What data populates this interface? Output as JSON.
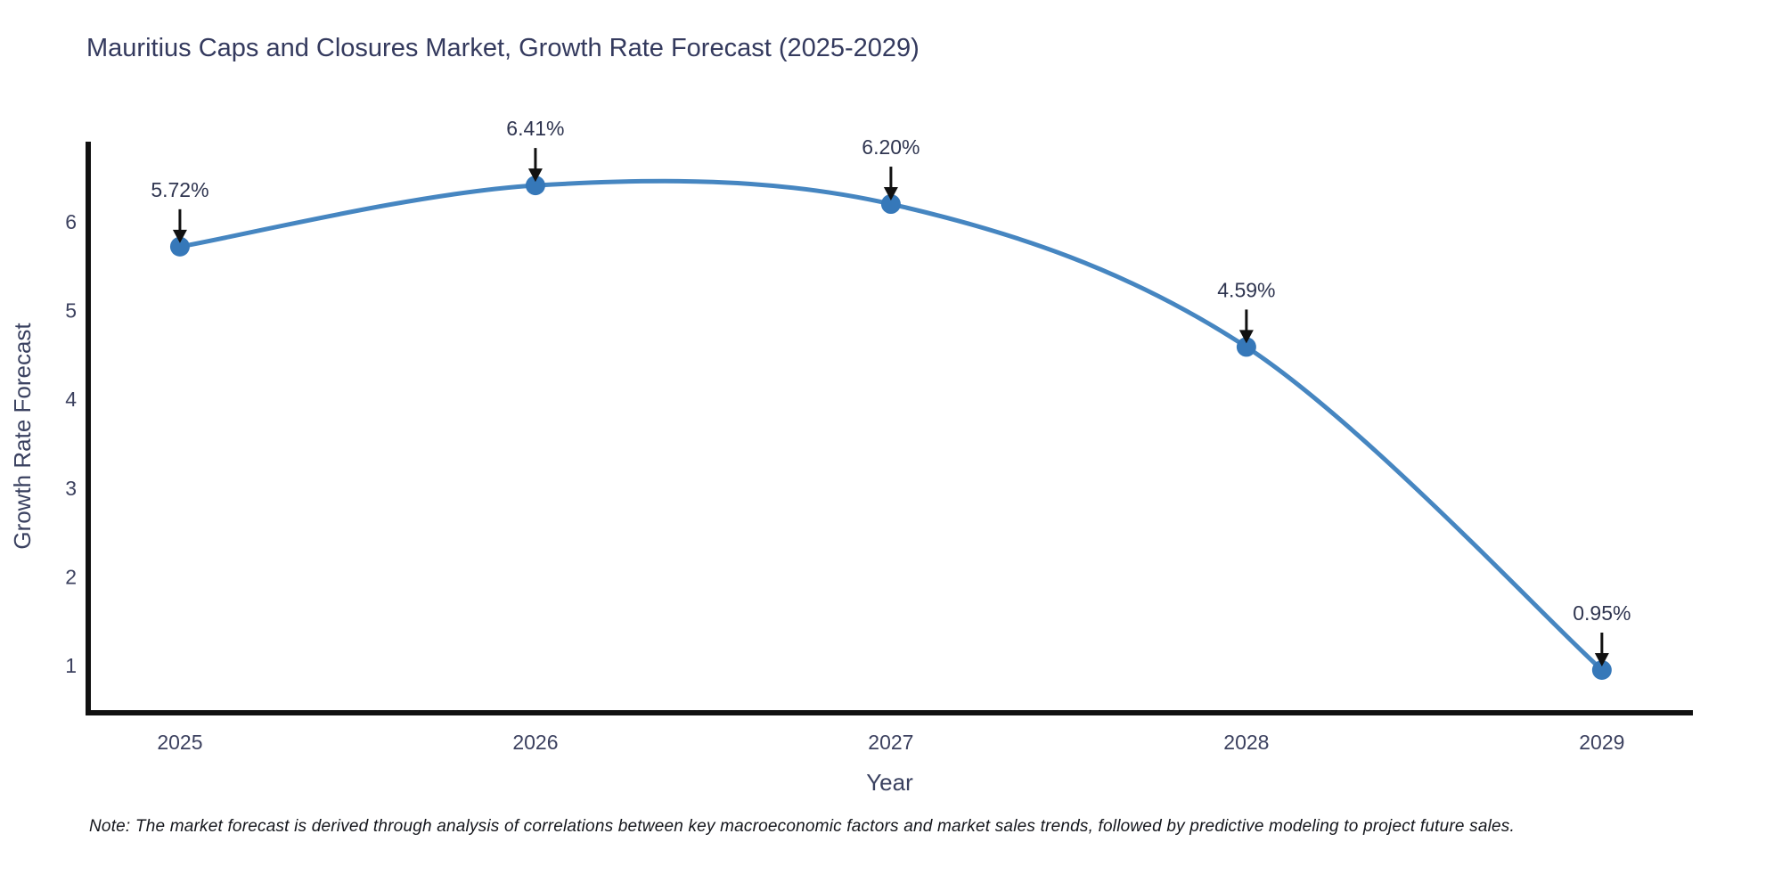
{
  "title": "Mauritius Caps and Closures Market, Growth Rate Forecast (2025-2029)",
  "note": "Note: The market forecast is derived through analysis of correlations between key macroeconomic factors and market sales trends, followed by predictive modeling to project future sales.",
  "colors": {
    "line": "#4686c1",
    "marker": "#3678b9",
    "axis": "#111111",
    "title_text": "#343a5e",
    "tick_text": "#3c415f",
    "axis_title_text": "#3a4160",
    "annotation_text": "#2f3550",
    "arrow": "#111111",
    "background": "#ffffff"
  },
  "chart_data": {
    "type": "line",
    "line_shape": "spline",
    "title": "Mauritius Caps and Closures Market, Growth Rate Forecast (2025-2029)",
    "xlabel": "Year",
    "ylabel": "Growth Rate Forecast",
    "x": [
      2025,
      2026,
      2027,
      2028,
      2029
    ],
    "values": [
      5.72,
      6.41,
      6.2,
      4.59,
      0.95
    ],
    "point_labels": [
      "5.72%",
      "6.41%",
      "6.20%",
      "4.59%",
      "0.95%"
    ],
    "xticks": [
      "2025",
      "2026",
      "2027",
      "2028",
      "2029"
    ],
    "yticks": [
      1,
      2,
      3,
      4,
      5,
      6
    ],
    "xlim": [
      2024.737,
      2029.256
    ],
    "ylim": [
      0.468,
      6.903
    ],
    "grid": false,
    "legend": false,
    "annotations_style": "value label with downward black arrow to each point"
  }
}
